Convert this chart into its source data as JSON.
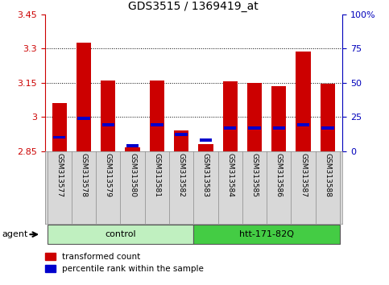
{
  "title": "GDS3515 / 1369419_at",
  "samples": [
    "GSM313577",
    "GSM313578",
    "GSM313579",
    "GSM313580",
    "GSM313581",
    "GSM313582",
    "GSM313583",
    "GSM313584",
    "GSM313585",
    "GSM313586",
    "GSM313587",
    "GSM313588"
  ],
  "red_values": [
    3.06,
    3.325,
    3.16,
    2.865,
    3.16,
    2.94,
    2.88,
    3.155,
    3.148,
    3.135,
    3.285,
    3.145
  ],
  "blue_percentiles": [
    10,
    24,
    19,
    4,
    19,
    12,
    8,
    17,
    17,
    17,
    19,
    17
  ],
  "ymin": 2.85,
  "ymax": 3.45,
  "yticks_left": [
    2.85,
    3.0,
    3.15,
    3.3,
    3.45
  ],
  "ytick_labels_left": [
    "2.85",
    "3",
    "3.15",
    "3.3",
    "3.45"
  ],
  "yticks_right": [
    0,
    25,
    50,
    75,
    100
  ],
  "ytick_labels_right": [
    "0",
    "25",
    "50",
    "75",
    "100%"
  ],
  "grid_lines": [
    3.0,
    3.15,
    3.3
  ],
  "groups": [
    {
      "label": "control",
      "start": 0,
      "end": 5,
      "color": "#c0f0c0"
    },
    {
      "label": "htt-171-82Q",
      "start": 6,
      "end": 11,
      "color": "#44cc44"
    }
  ],
  "agent_label": "agent",
  "bar_color_red": "#cc0000",
  "bar_color_blue": "#0000cc",
  "sample_bg_color": "#d8d8d8",
  "plot_bg": "#ffffff",
  "title_fontsize": 10,
  "axis_color_left": "#cc0000",
  "axis_color_right": "#0000bb",
  "legend_red": "transformed count",
  "legend_blue": "percentile rank within the sample"
}
